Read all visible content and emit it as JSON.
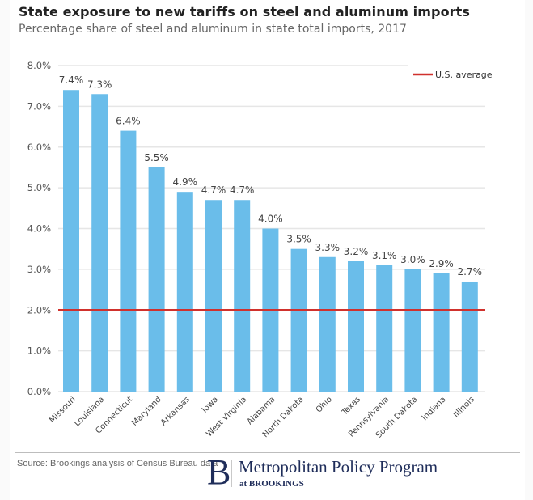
{
  "header": {
    "title": "State exposure to new tariffs on steel and aluminum imports",
    "subtitle": "Percentage share of steel and aluminum in state total imports, 2017"
  },
  "chart_data": {
    "type": "bar",
    "title": "State exposure to new tariffs on steel and aluminum imports",
    "subtitle": "Percentage share of steel and aluminum in state total imports, 2017",
    "xlabel": "",
    "ylabel": "",
    "categories": [
      "Missouri",
      "Louisiana",
      "Connecticut",
      "Maryland",
      "Arkansas",
      "Iowa",
      "West Virginia",
      "Alabama",
      "North Dakota",
      "Ohio",
      "Texas",
      "Pennsylvania",
      "South Dakota",
      "Indiana",
      "Illinois"
    ],
    "values": [
      7.4,
      7.3,
      6.4,
      5.5,
      4.9,
      4.7,
      4.7,
      4.0,
      3.5,
      3.3,
      3.2,
      3.1,
      3.0,
      2.9,
      2.7
    ],
    "data_labels": [
      "7.4%",
      "7.3%",
      "6.4%",
      "5.5%",
      "4.9%",
      "4.7%",
      "4.7%",
      "4.0%",
      "3.5%",
      "3.3%",
      "3.2%",
      "3.1%",
      "3.0%",
      "2.9%",
      "2.7%"
    ],
    "ylim": [
      0,
      8
    ],
    "yticks": [
      0,
      1,
      2,
      3,
      4,
      5,
      6,
      7,
      8
    ],
    "ytick_labels": [
      "0.0%",
      "1.0%",
      "2.0%",
      "3.0%",
      "4.0%",
      "5.0%",
      "6.0%",
      "7.0%",
      "8.0%"
    ],
    "grid": true,
    "bar_color": "#6abdea",
    "reference_line": {
      "name": "U.S. average",
      "value": 2.0,
      "color": "#d0312d"
    },
    "legend": {
      "entries": [
        "U.S. average"
      ],
      "placement": "top-right"
    }
  },
  "footer": {
    "source": "Source:  Brookings analysis of Census Bureau data",
    "logo_letter": "B",
    "logo_main": "Metropolitan Policy Program",
    "logo_sub": "at BROOKINGS"
  }
}
